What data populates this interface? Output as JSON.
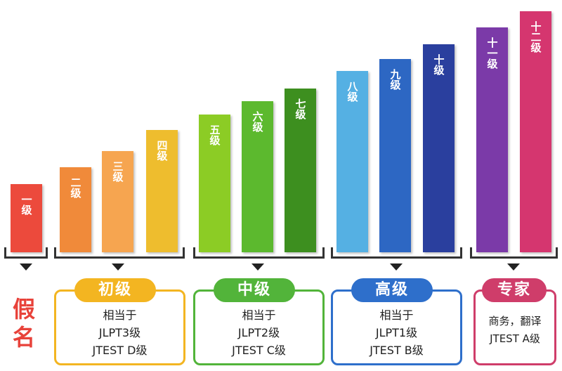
{
  "levels": [
    {
      "label": "一级",
      "color": "#ec4a3c"
    },
    {
      "label": "二级",
      "color": "#f08a3a"
    },
    {
      "label": "三级",
      "color": "#f6a550"
    },
    {
      "label": "四级",
      "color": "#eebd2e"
    },
    {
      "label": "五级",
      "color": "#8ccc25"
    },
    {
      "label": "六级",
      "color": "#5cb92e"
    },
    {
      "label": "七级",
      "color": "#3d8f1f"
    },
    {
      "label": "八级",
      "color": "#55b0e3"
    },
    {
      "label": "九级",
      "color": "#2d67c3"
    },
    {
      "label": "十级",
      "color": "#2a3f9e"
    },
    {
      "label": "十一级",
      "color": "#7b3aa8"
    },
    {
      "label": "十二级",
      "color": "#d5366f"
    }
  ],
  "kana": {
    "label": "假名",
    "color": "#e8423a"
  },
  "groups": [
    {
      "title": "初级",
      "color": "#f3b521",
      "line1": "相当于",
      "line2": "JLPT3级",
      "line3": "JTEST D级"
    },
    {
      "title": "中级",
      "color": "#52b43a",
      "line1": "相当于",
      "line2": "JLPT2级",
      "line3": "JTEST C级"
    },
    {
      "title": "高级",
      "color": "#2e6fcb",
      "line1": "相当于",
      "line2": "JLPT1级",
      "line3": "JTEST B级"
    },
    {
      "title": "专家",
      "color": "#cf3d6a",
      "line1": "商务，翻译",
      "line2": "JTEST A级",
      "line3": ""
    }
  ]
}
